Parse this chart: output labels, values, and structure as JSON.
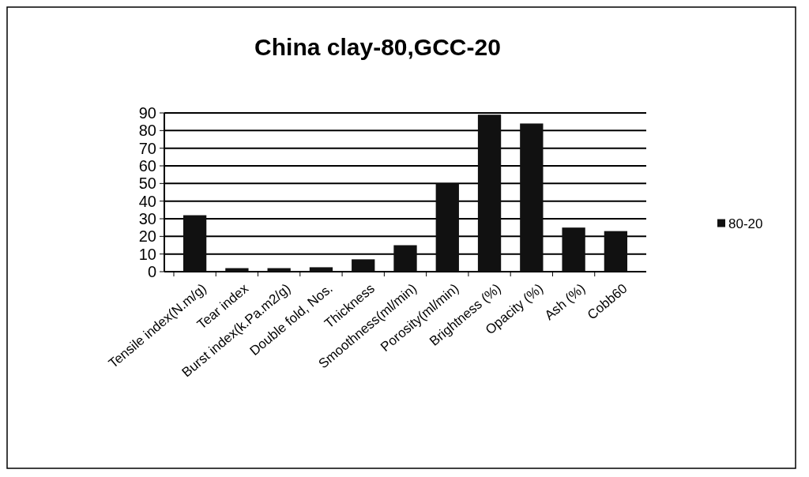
{
  "chart_data": {
    "type": "bar",
    "title": "China clay-80,GCC-20",
    "categories": [
      "Tensile index(N.m/g)",
      "Tear index",
      "Burst index(k.Pa.m2/g)",
      "Double fold, Nos.",
      "Thickness",
      "Smoothness(ml/min)",
      "Porosity(ml/min)",
      "Brightness (%)",
      "Opacity (%)",
      "Ash (%)",
      "Cobb60"
    ],
    "series": [
      {
        "name": "80-20",
        "color": "#111111",
        "values": [
          32,
          2,
          2,
          2.5,
          7,
          15,
          50,
          89,
          84,
          25,
          23
        ]
      }
    ],
    "ylim": [
      0,
      90
    ],
    "yticks": [
      0,
      10,
      20,
      30,
      40,
      50,
      60,
      70,
      80,
      90
    ],
    "grid": "y",
    "legend": "right"
  }
}
